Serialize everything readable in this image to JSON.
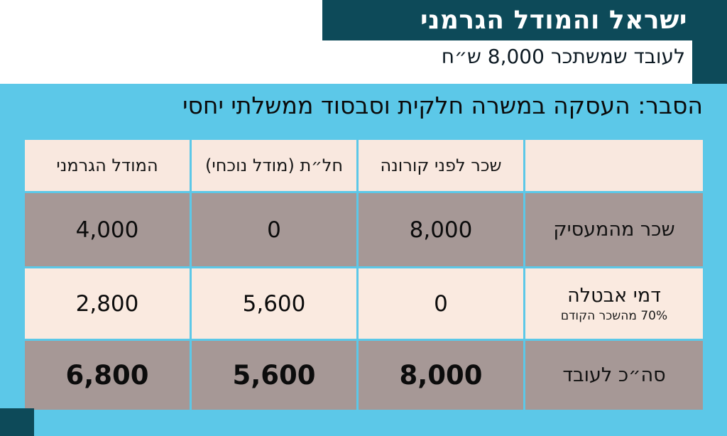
{
  "colors": {
    "teal": "#0d4a59",
    "sky_blue": "#5cc8e8",
    "cream": "#faeae0",
    "header_cream": "#f9e8df",
    "mauve": "#a69896",
    "white": "#ffffff"
  },
  "header": {
    "title": "ישראל והמודל הגרמני",
    "subtitle": "לעובד שמשתכר 8,000 ש״ח"
  },
  "explainer": "הסבר: העסקה במשרה חלקית וסבסוד ממשלתי יחסי",
  "table": {
    "columns": [
      "שכר לפני קורונה",
      "חל״ת (מודל נוכחי)",
      "המודל הגרמני"
    ],
    "rows": [
      {
        "label": "שכר מהמעסיק",
        "sublabel": "",
        "values": [
          "8,000",
          "0",
          "4,000"
        ]
      },
      {
        "label": "דמי אבטלה",
        "sublabel": "70% מהשכר הקודם",
        "values": [
          "0",
          "5,600",
          "2,800"
        ]
      },
      {
        "label": "סה״כ לעובד",
        "sublabel": "",
        "values": [
          "8,000",
          "5,600",
          "6,800"
        ]
      }
    ]
  },
  "chart_data": {
    "type": "table",
    "title": "ישראל והמודל הגרמני",
    "subtitle": "לעובד שמשתכר 8,000 ש״ח",
    "note": "הסבר: העסקה במשרה חלקית וסבסוד ממשלתי יחסי",
    "columns": [
      "שכר לפני קורונה",
      "חל״ת (מודל נוכחי)",
      "המודל הגרמני"
    ],
    "row_labels": [
      "שכר מהמעסיק",
      "דמי אבטלה (70% מהשכר הקודם)",
      "סה״כ לעובד"
    ],
    "series": [
      {
        "name": "שכר לפני קורונה",
        "values": [
          8000,
          0,
          8000
        ]
      },
      {
        "name": "חל״ת (מודל נוכחי)",
        "values": [
          0,
          5600,
          5600
        ]
      },
      {
        "name": "המודל הגרמני",
        "values": [
          4000,
          2800,
          6800
        ]
      }
    ]
  }
}
